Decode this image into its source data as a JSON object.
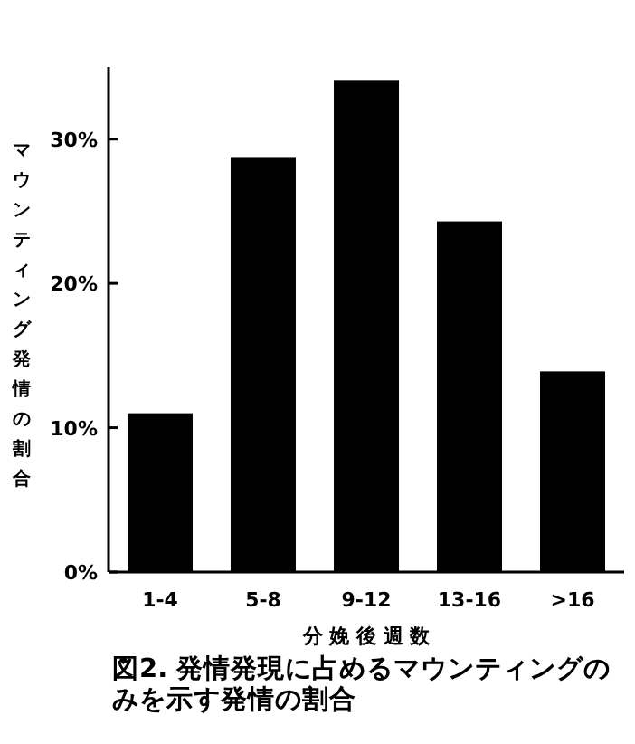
{
  "chart_data": {
    "type": "bar",
    "title": "図2. 発情発現に占めるマウンティングのみを示す発情の割合",
    "xlabel": "分 娩 後 週 数",
    "ylabel": "マウンティング発情の割合",
    "categories": [
      "1-4",
      "5-8",
      "9-12",
      "13-16",
      ">16"
    ],
    "values": [
      11.0,
      28.7,
      34.1,
      24.3,
      13.9
    ],
    "color": "#000000",
    "ylim": [
      0,
      35
    ],
    "yticks": [
      {
        "value": 0,
        "label": "0%"
      },
      {
        "value": 10,
        "label": "10%"
      },
      {
        "value": 20,
        "label": "20%"
      },
      {
        "value": 30,
        "label": "30%"
      }
    ],
    "grid": false
  }
}
